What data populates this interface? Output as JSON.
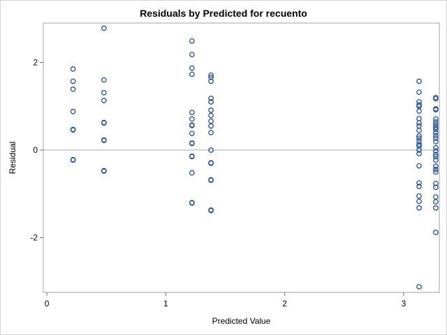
{
  "chart_data": {
    "type": "scatter",
    "title": "Residuals by Predicted for recuento",
    "xlabel": "Predicted Value",
    "ylabel": "Residual",
    "xlim": [
      -0.03,
      3.3
    ],
    "ylim": [
      -3.25,
      2.9
    ],
    "xticks": [
      0,
      1,
      2,
      3
    ],
    "xtick_labels": [
      "0",
      "1",
      "2",
      "3"
    ],
    "yticks": [
      -2,
      0,
      2
    ],
    "ytick_labels": [
      "-2",
      "0",
      "2"
    ],
    "reference_line_y": 0,
    "grid": false,
    "marker_color": "#1f4e99",
    "reference_line_color": "#a8a8a8",
    "points": [
      [
        0.22,
        1.85
      ],
      [
        0.22,
        1.57
      ],
      [
        0.22,
        1.39
      ],
      [
        0.22,
        0.88
      ],
      [
        0.22,
        0.47
      ],
      [
        0.22,
        0.46
      ],
      [
        0.22,
        -0.22
      ],
      [
        0.22,
        -0.23
      ],
      [
        0.48,
        2.78
      ],
      [
        0.48,
        1.6
      ],
      [
        0.48,
        1.31
      ],
      [
        0.48,
        1.13
      ],
      [
        0.48,
        0.63
      ],
      [
        0.48,
        0.62
      ],
      [
        0.48,
        0.23
      ],
      [
        0.48,
        0.22
      ],
      [
        0.48,
        -0.47
      ],
      [
        0.48,
        -0.48
      ],
      [
        1.22,
        2.49
      ],
      [
        1.22,
        2.18
      ],
      [
        1.22,
        1.87
      ],
      [
        1.22,
        1.73
      ],
      [
        1.22,
        0.86
      ],
      [
        1.22,
        0.71
      ],
      [
        1.22,
        0.57
      ],
      [
        1.22,
        0.56
      ],
      [
        1.22,
        0.38
      ],
      [
        1.22,
        0.16
      ],
      [
        1.22,
        0.15
      ],
      [
        1.22,
        -0.14
      ],
      [
        1.22,
        -0.15
      ],
      [
        1.22,
        -0.52
      ],
      [
        1.22,
        -1.2
      ],
      [
        1.22,
        -1.21
      ],
      [
        1.38,
        1.71
      ],
      [
        1.38,
        1.66
      ],
      [
        1.38,
        1.57
      ],
      [
        1.38,
        1.18
      ],
      [
        1.38,
        1.1
      ],
      [
        1.38,
        0.91
      ],
      [
        1.38,
        0.79
      ],
      [
        1.38,
        0.66
      ],
      [
        1.38,
        0.55
      ],
      [
        1.38,
        0.4
      ],
      [
        1.38,
        0.0
      ],
      [
        1.38,
        -0.29
      ],
      [
        1.38,
        -0.3
      ],
      [
        1.38,
        -0.68
      ],
      [
        1.38,
        -0.69
      ],
      [
        1.38,
        -1.37
      ],
      [
        1.38,
        -1.38
      ],
      [
        3.13,
        1.57
      ],
      [
        3.13,
        1.32
      ],
      [
        3.13,
        1.1
      ],
      [
        3.13,
        1.03
      ],
      [
        3.13,
        1.0
      ],
      [
        3.13,
        0.89
      ],
      [
        3.13,
        0.72
      ],
      [
        3.13,
        0.62
      ],
      [
        3.13,
        0.55
      ],
      [
        3.13,
        0.45
      ],
      [
        3.13,
        0.32
      ],
      [
        3.13,
        0.27
      ],
      [
        3.13,
        0.2
      ],
      [
        3.13,
        0.13
      ],
      [
        3.13,
        0.09
      ],
      [
        3.13,
        0.0
      ],
      [
        3.13,
        -0.08
      ],
      [
        3.13,
        -0.36
      ],
      [
        3.13,
        -0.75
      ],
      [
        3.13,
        -0.83
      ],
      [
        3.13,
        -1.05
      ],
      [
        3.13,
        -1.17
      ],
      [
        3.13,
        -1.32
      ],
      [
        3.13,
        -3.12
      ],
      [
        3.27,
        1.2
      ],
      [
        3.27,
        1.17
      ],
      [
        3.27,
        0.94
      ],
      [
        3.27,
        0.92
      ],
      [
        3.27,
        0.71
      ],
      [
        3.27,
        0.64
      ],
      [
        3.27,
        0.58
      ],
      [
        3.27,
        0.52
      ],
      [
        3.27,
        0.47
      ],
      [
        3.27,
        0.4
      ],
      [
        3.27,
        0.33
      ],
      [
        3.27,
        0.27
      ],
      [
        3.27,
        0.19
      ],
      [
        3.27,
        0.05
      ],
      [
        3.27,
        -0.02
      ],
      [
        3.27,
        -0.1
      ],
      [
        3.27,
        -0.15
      ],
      [
        3.27,
        -0.23
      ],
      [
        3.27,
        -0.37
      ],
      [
        3.27,
        -0.44
      ],
      [
        3.27,
        -0.5
      ],
      [
        3.27,
        -0.76
      ],
      [
        3.27,
        -0.85
      ],
      [
        3.27,
        -1.07
      ],
      [
        3.27,
        -1.18
      ],
      [
        3.27,
        -1.32
      ],
      [
        3.27,
        -1.88
      ]
    ]
  }
}
